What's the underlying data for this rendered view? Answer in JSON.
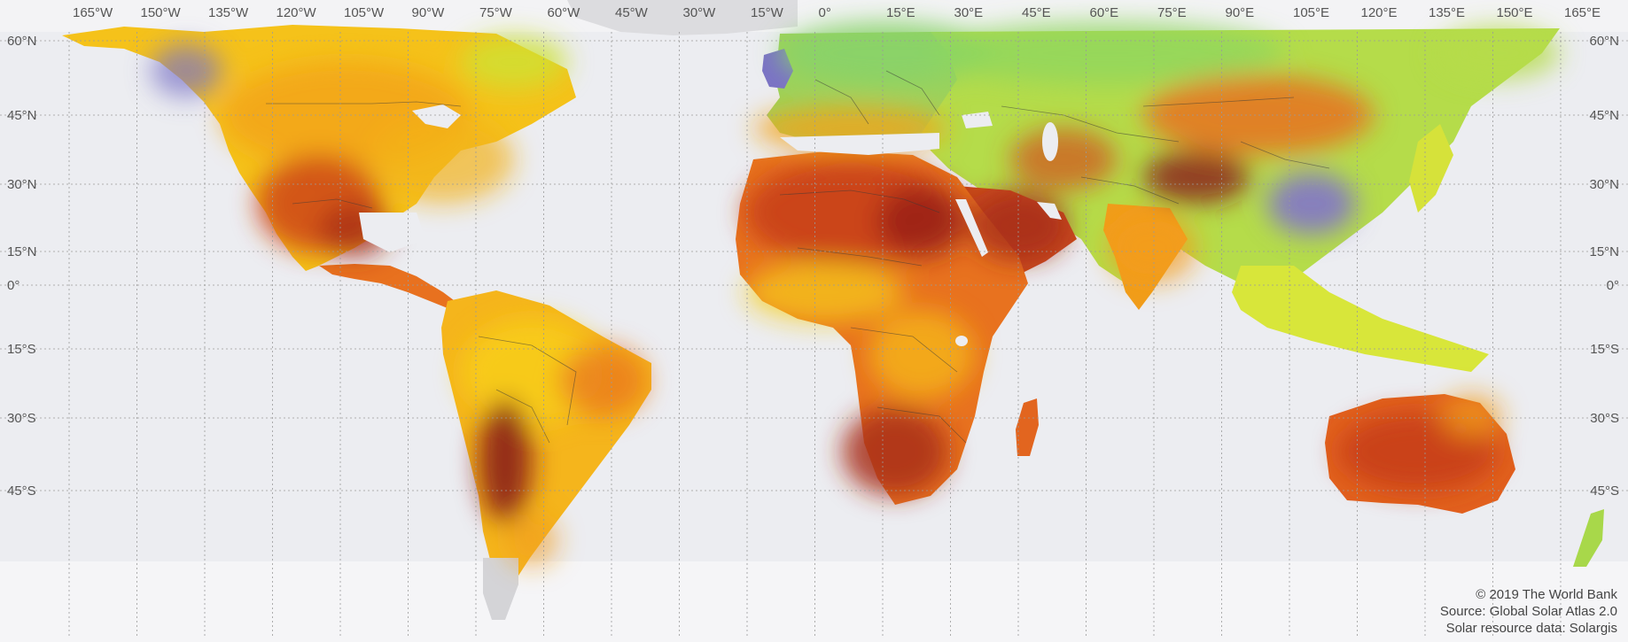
{
  "map": {
    "lon_labels": [
      "165°W",
      "150°W",
      "135°W",
      "120°W",
      "105°W",
      "90°W",
      "75°W",
      "60°W",
      "45°W",
      "30°W",
      "15°W",
      "0°",
      "15°E",
      "30°E",
      "45°E",
      "60°E",
      "75°E",
      "90°E",
      "105°E",
      "120°E",
      "135°E",
      "150°E",
      "165°E"
    ],
    "lat_labels": [
      "60°N",
      "45°N",
      "30°N",
      "15°N",
      "0°",
      "15°S",
      "30°S",
      "45°S"
    ],
    "colors": {
      "ocean": "#ecedf1",
      "land_base": "#d9d9dc",
      "very_high": "#7a1616",
      "high": "#c0391b",
      "mid_high": "#e56a20",
      "mid": "#f39c1a",
      "mid_low": "#f7cf1b",
      "low": "#cde235",
      "lower": "#88d36a",
      "lowest": "#6aa9b8",
      "min": "#8275c9",
      "grid": "#9a9a9a"
    }
  },
  "attribution": {
    "line1": "© 2019 The World Bank",
    "line2": "Source: Global Solar Atlas 2.0",
    "line3": "Solar resource data: Solargis"
  }
}
